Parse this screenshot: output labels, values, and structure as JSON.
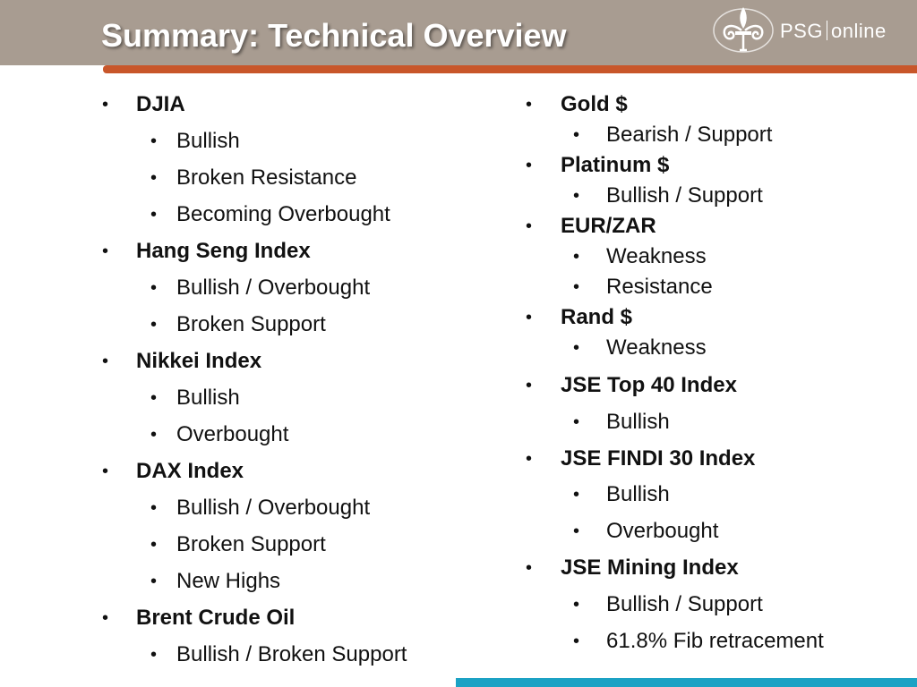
{
  "header": {
    "title": "Summary: Technical Overview",
    "logo_brand": "PSG",
    "logo_suffix": "online",
    "logo_icon": "fleur-de-lis-icon"
  },
  "bullet_char": "•",
  "colors": {
    "header_bg": "#a89c91",
    "accent_bar": "#c8562a",
    "bottom_bar": "#1ba2c4"
  },
  "left_column": [
    {
      "level": 1,
      "text": "DJIA"
    },
    {
      "level": 2,
      "text": "Bullish"
    },
    {
      "level": 2,
      "text": "Broken Resistance"
    },
    {
      "level": 2,
      "text": "Becoming Overbought"
    },
    {
      "level": 1,
      "text": "Hang Seng Index"
    },
    {
      "level": 2,
      "text": "Bullish / Overbought"
    },
    {
      "level": 2,
      "text": "Broken Support"
    },
    {
      "level": 1,
      "text": "Nikkei Index"
    },
    {
      "level": 2,
      "text": "Bullish"
    },
    {
      "level": 2,
      "text": "Overbought"
    },
    {
      "level": 1,
      "text": "DAX Index"
    },
    {
      "level": 2,
      "text": "Bullish / Overbought"
    },
    {
      "level": 2,
      "text": "Broken Support"
    },
    {
      "level": 2,
      "text": "New Highs"
    },
    {
      "level": 1,
      "text": "Brent Crude Oil"
    },
    {
      "level": 2,
      "text": "Bullish / Broken Support"
    }
  ],
  "right_column": [
    {
      "level": 1,
      "text": "Gold $"
    },
    {
      "level": 2,
      "text": "Bearish / Support"
    },
    {
      "level": 1,
      "text": "Platinum $"
    },
    {
      "level": 2,
      "text": "Bullish / Support"
    },
    {
      "level": 1,
      "text": "EUR/ZAR"
    },
    {
      "level": 2,
      "text": "Weakness"
    },
    {
      "level": 2,
      "text": "Resistance"
    },
    {
      "level": 1,
      "text": "Rand $"
    },
    {
      "level": 2,
      "text": "Weakness"
    },
    {
      "level": 1,
      "text": "JSE Top 40 Index"
    },
    {
      "level": 2,
      "text": "Bullish"
    },
    {
      "level": 1,
      "text": "JSE FINDI 30 Index"
    },
    {
      "level": 2,
      "text": "Bullish"
    },
    {
      "level": 2,
      "text": "Overbought"
    },
    {
      "level": 1,
      "text": "JSE Mining Index"
    },
    {
      "level": 2,
      "text": "Bullish / Support"
    },
    {
      "level": 2,
      "text": "61.8% Fib retracement"
    }
  ]
}
